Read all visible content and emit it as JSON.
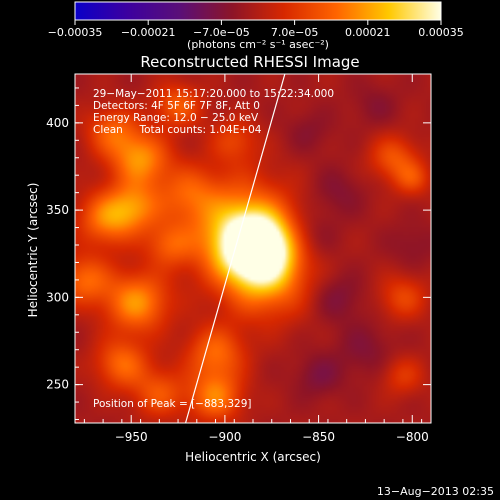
{
  "chart_data": {
    "type": "heatmap",
    "title": "Reconstructed RHESSI Image",
    "xlabel": "Heliocentric X (arcsec)",
    "ylabel": "Heliocentric Y (arcsec)",
    "xlim": [
      -980,
      -790
    ],
    "ylim": [
      228,
      428
    ],
    "x_ticks": [
      {
        "value": -950,
        "label": "−950"
      },
      {
        "value": -900,
        "label": "−900"
      },
      {
        "value": -850,
        "label": "−850"
      },
      {
        "value": -800,
        "label": "−800"
      }
    ],
    "y_ticks": [
      {
        "value": 250,
        "label": "250"
      },
      {
        "value": 300,
        "label": "300"
      },
      {
        "value": 350,
        "label": "350"
      },
      {
        "value": 400,
        "label": "400"
      }
    ],
    "colorbar": {
      "range": [
        -0.00035,
        0.00035
      ],
      "tick_labels": [
        "−0.00035",
        "−0.00021",
        "−7.0e−05",
        "7.0e−05",
        "0.00021",
        "0.00035"
      ],
      "unit_label": "(photons cm⁻² s⁻¹ asec⁻²)",
      "colors": [
        "#0a00c8",
        "#3c00a0",
        "#5a0f78",
        "#8c1428",
        "#d72800",
        "#ff6400",
        "#ffc800",
        "#ffffe6"
      ]
    },
    "annotations": [
      "29−May−2011 15:17:20.000 to 15:22:34.000",
      "Detectors: 4F 5F 6F 7F 8F, Att 0",
      "Energy Range: 12.0 − 25.0 keV",
      "Clean     Total counts: 1.04E+04"
    ],
    "peak_text": "Position of Peak = [−883,329]",
    "peak": {
      "x": -883,
      "y": 329
    },
    "limb_line": [
      {
        "x": -921,
        "y": 228
      },
      {
        "x": -868,
        "y": 428
      }
    ],
    "sources": [
      {
        "x": -883,
        "y": 329,
        "amp": 0.0004,
        "s": 13
      },
      {
        "x": -893,
        "y": 340,
        "amp": 0.00022,
        "s": 20
      },
      {
        "x": -878,
        "y": 310,
        "amp": 0.00018,
        "s": 16
      },
      {
        "x": -945,
        "y": 379,
        "amp": 0.0002,
        "s": 11
      },
      {
        "x": -960,
        "y": 395,
        "amp": 0.00014,
        "s": 10
      },
      {
        "x": -963,
        "y": 345,
        "amp": 0.00018,
        "s": 11
      },
      {
        "x": -948,
        "y": 352,
        "amp": 0.00016,
        "s": 10
      },
      {
        "x": -920,
        "y": 360,
        "amp": 0.00011,
        "s": 11
      },
      {
        "x": -975,
        "y": 310,
        "amp": 0.00016,
        "s": 10
      },
      {
        "x": -947,
        "y": 297,
        "amp": 0.00021,
        "s": 12
      },
      {
        "x": -955,
        "y": 262,
        "amp": 0.00016,
        "s": 10
      },
      {
        "x": -935,
        "y": 245,
        "amp": 0.00013,
        "s": 10
      },
      {
        "x": -905,
        "y": 268,
        "amp": 0.00016,
        "s": 11
      },
      {
        "x": -905,
        "y": 243,
        "amp": 0.00018,
        "s": 10
      },
      {
        "x": -930,
        "y": 330,
        "amp": 0.00012,
        "s": 9
      },
      {
        "x": -925,
        "y": 410,
        "amp": 0.00014,
        "s": 9
      },
      {
        "x": -895,
        "y": 390,
        "amp": 0.0001,
        "s": 9
      },
      {
        "x": -810,
        "y": 380,
        "amp": 0.00013,
        "s": 9
      },
      {
        "x": -800,
        "y": 368,
        "amp": 0.00011,
        "s": 7
      },
      {
        "x": -805,
        "y": 300,
        "amp": 0.00011,
        "s": 9
      },
      {
        "x": -805,
        "y": 255,
        "amp": 9e-05,
        "s": 8
      },
      {
        "x": -855,
        "y": 395,
        "amp": -4e-05,
        "s": 9
      },
      {
        "x": -840,
        "y": 360,
        "amp": -5e-05,
        "s": 10
      },
      {
        "x": -855,
        "y": 335,
        "amp": -6e-05,
        "s": 10
      },
      {
        "x": -840,
        "y": 300,
        "amp": -6e-05,
        "s": 10
      },
      {
        "x": -825,
        "y": 270,
        "amp": -5e-05,
        "s": 11
      },
      {
        "x": -850,
        "y": 255,
        "amp": -6e-05,
        "s": 9
      },
      {
        "x": -800,
        "y": 330,
        "amp": -4e-05,
        "s": 9
      },
      {
        "x": -820,
        "y": 410,
        "amp": -4e-05,
        "s": 9
      }
    ],
    "background": -1.5e-05
  },
  "footer_date": "13−Aug−2013 02:35"
}
